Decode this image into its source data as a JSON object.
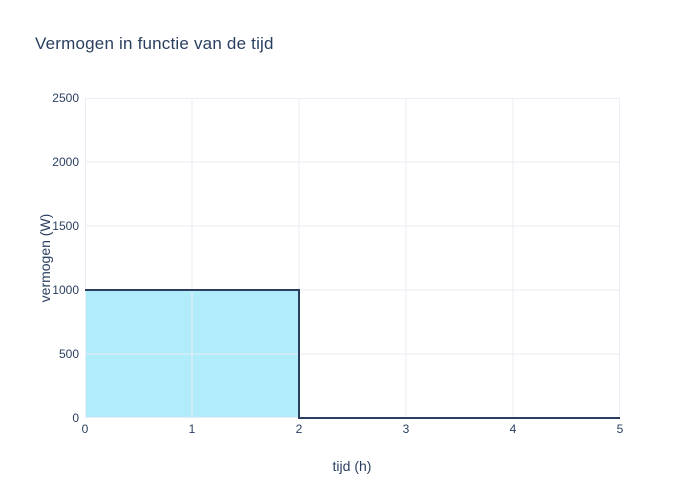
{
  "chart_data": {
    "type": "area",
    "title": "Vermogen in functie van de tijd",
    "xlabel": "tijd (h)",
    "ylabel": "vermogen (W)",
    "x": [
      0,
      2,
      2,
      5
    ],
    "y": [
      1000,
      1000,
      0,
      0
    ],
    "xlim": [
      0,
      5
    ],
    "ylim": [
      0,
      2500
    ],
    "x_ticks": [
      "0",
      "1",
      "2",
      "3",
      "4",
      "5"
    ],
    "y_ticks": [
      "0",
      "500",
      "1000",
      "1500",
      "2000",
      "2500"
    ],
    "grid": true,
    "legend": "none",
    "colors": {
      "line": "#2a3f5f",
      "fill": "#b1ecfb",
      "grid": "#e9edf6",
      "text": "#2a3f5f",
      "background": "#ffffff"
    }
  }
}
